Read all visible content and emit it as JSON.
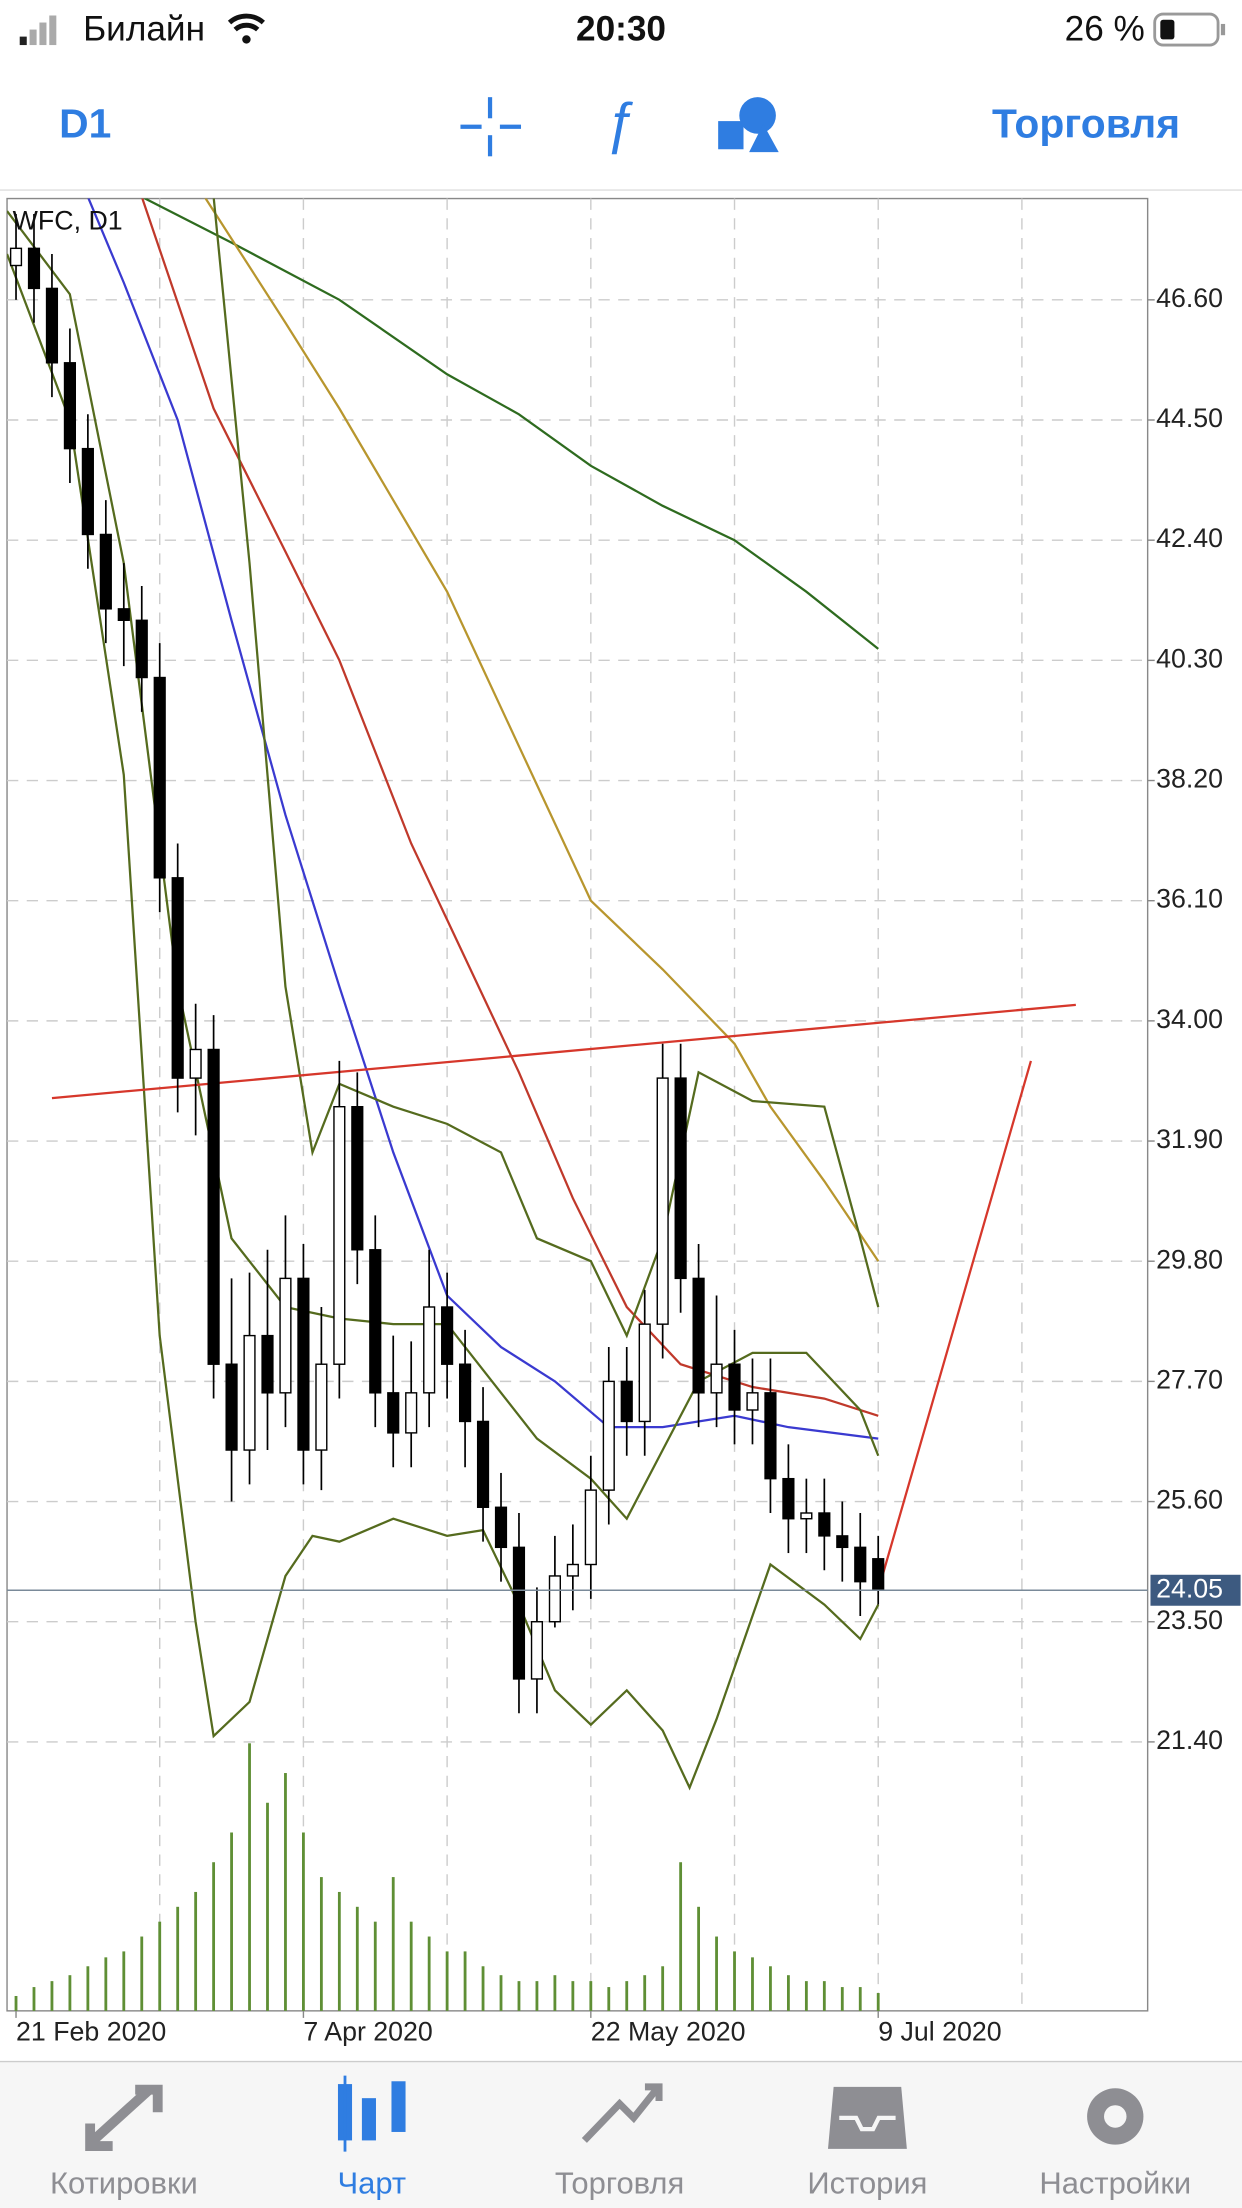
{
  "status_bar": {
    "carrier": "Билайн",
    "time": "20:30",
    "battery": "26 %"
  },
  "toolbar": {
    "timeframe": "D1",
    "trade": "Торговля"
  },
  "chart_data": {
    "type": "candlestick",
    "title": "WFC, D1",
    "x": [
      0,
      2,
      4,
      6,
      8,
      10,
      12,
      14,
      16,
      18,
      20,
      22,
      24,
      26,
      28,
      30,
      32,
      34,
      36,
      38,
      40,
      42,
      44,
      46,
      48,
      50,
      52,
      54,
      56,
      58,
      60,
      62,
      64,
      66,
      68,
      70,
      72,
      74,
      76,
      78,
      80,
      82,
      84,
      86,
      88,
      90,
      92,
      94,
      96
    ],
    "open": [
      47.2,
      47.5,
      46.8,
      45.5,
      44.0,
      42.5,
      41.2,
      41.0,
      40.0,
      36.5,
      33.0,
      33.5,
      28.0,
      26.5,
      28.5,
      27.5,
      29.5,
      26.5,
      28.0,
      32.5,
      30.0,
      27.5,
      26.8,
      27.5,
      29.0,
      28.0,
      27.0,
      25.5,
      24.8,
      22.5,
      23.5,
      24.3,
      24.5,
      25.8,
      27.7,
      27.0,
      28.7,
      33.0,
      29.5,
      27.5,
      28.0,
      27.2,
      27.5,
      26.0,
      25.3,
      25.4,
      25.0,
      24.8,
      24.6
    ],
    "high": [
      48.1,
      48.1,
      47.4,
      46.1,
      44.6,
      43.1,
      42.0,
      41.6,
      40.6,
      37.1,
      34.3,
      34.1,
      29.5,
      29.6,
      30.0,
      30.6,
      30.1,
      29.0,
      33.3,
      33.1,
      30.6,
      28.5,
      28.4,
      30.0,
      29.6,
      28.6,
      27.6,
      26.1,
      25.4,
      24.1,
      25.0,
      25.2,
      26.4,
      28.3,
      28.3,
      29.3,
      33.6,
      33.6,
      30.1,
      29.2,
      28.6,
      28.1,
      28.1,
      26.6,
      26.0,
      26.0,
      25.6,
      25.4,
      25.0
    ],
    "low": [
      46.6,
      46.2,
      44.9,
      43.4,
      41.9,
      40.6,
      40.2,
      39.4,
      35.9,
      32.4,
      32.0,
      27.4,
      25.6,
      25.9,
      26.5,
      26.9,
      25.9,
      25.8,
      27.4,
      29.4,
      26.9,
      26.2,
      26.2,
      26.9,
      27.4,
      26.2,
      24.9,
      24.2,
      21.9,
      21.9,
      23.4,
      23.7,
      23.9,
      25.2,
      26.4,
      26.4,
      28.1,
      28.9,
      26.9,
      26.9,
      26.6,
      26.6,
      25.4,
      24.7,
      24.7,
      24.4,
      24.2,
      23.6,
      23.8
    ],
    "close": [
      47.5,
      46.8,
      45.5,
      44.0,
      42.5,
      41.2,
      41.0,
      40.0,
      36.5,
      33.0,
      33.5,
      28.0,
      26.5,
      28.5,
      27.5,
      29.5,
      26.5,
      28.0,
      32.5,
      30.0,
      27.5,
      26.8,
      27.5,
      29.0,
      28.0,
      27.0,
      25.5,
      24.8,
      22.5,
      23.5,
      24.3,
      24.5,
      25.8,
      27.7,
      27.0,
      28.7,
      33.0,
      29.5,
      27.5,
      28.0,
      27.2,
      27.5,
      26.0,
      25.3,
      25.4,
      25.0,
      24.8,
      24.2,
      24.05
    ],
    "volume": [
      5,
      8,
      10,
      12,
      15,
      18,
      20,
      25,
      30,
      35,
      40,
      50,
      60,
      90,
      70,
      80,
      60,
      45,
      40,
      35,
      30,
      45,
      30,
      25,
      20,
      20,
      15,
      12,
      10,
      10,
      12,
      10,
      10,
      8,
      10,
      12,
      15,
      50,
      35,
      25,
      20,
      18,
      15,
      12,
      10,
      10,
      8,
      8,
      6
    ],
    "up_color": "#ffffff",
    "down_color": "#000000",
    "volume_color": "#5f8f35",
    "xlim": [
      -1,
      126
    ],
    "ylim": [
      16.7,
      48.37
    ],
    "xticks": [
      {
        "value": 0,
        "label": "21 Feb 2020"
      },
      {
        "value": 32,
        "label": "7 Apr 2020"
      },
      {
        "value": 64,
        "label": "22 May 2020"
      },
      {
        "value": 96,
        "label": "9 Jul 2020"
      }
    ],
    "xgrid": [
      16,
      32,
      48,
      64,
      80,
      96,
      112
    ],
    "yticks": [
      {
        "value": 46.6,
        "label": "46.60"
      },
      {
        "value": 44.5,
        "label": "44.50"
      },
      {
        "value": 42.4,
        "label": "42.40"
      },
      {
        "value": 40.3,
        "label": "40.30"
      },
      {
        "value": 38.2,
        "label": "38.20"
      },
      {
        "value": 36.1,
        "label": "36.10"
      },
      {
        "value": 34,
        "label": "34.00"
      },
      {
        "value": 31.9,
        "label": "31.90"
      },
      {
        "value": 29.8,
        "label": "29.80"
      },
      {
        "value": 27.7,
        "label": "27.70"
      },
      {
        "value": 25.6,
        "label": "25.60"
      },
      {
        "value": 23.5,
        "label": "23.50"
      },
      {
        "value": 21.4,
        "label": "21.40"
      }
    ],
    "grid": true,
    "last_price": 24.05,
    "series": [
      {
        "color": "#2e6b1f",
        "x": [
          14,
          24,
          36,
          48,
          56,
          64,
          72,
          80,
          88,
          96
        ],
        "values": [
          48.4,
          47.6,
          46.6,
          45.3,
          44.6,
          43.7,
          43.0,
          42.4,
          41.5,
          40.5
        ]
      },
      {
        "color": "#b8962e",
        "x": [
          21,
          30,
          36,
          48,
          56,
          64,
          72,
          80,
          84,
          90,
          96
        ],
        "values": [
          48.4,
          46.2,
          44.7,
          41.5,
          38.8,
          36.1,
          34.9,
          33.6,
          32.5,
          31.2,
          29.8
        ]
      },
      {
        "color": "#c0392b",
        "x": [
          14,
          22,
          30,
          36,
          44,
          50,
          56,
          62,
          68,
          74,
          82,
          90,
          96
        ],
        "values": [
          48.4,
          44.7,
          42.2,
          40.3,
          37.1,
          35.1,
          33.1,
          30.9,
          29.0,
          28.0,
          27.6,
          27.4,
          27.1
        ]
      },
      {
        "color": "#3a3ad0",
        "x": [
          8,
          12,
          18,
          24,
          30,
          36,
          42,
          48,
          54,
          60,
          66,
          72,
          80,
          86,
          96
        ],
        "values": [
          48.4,
          46.9,
          44.5,
          41.0,
          37.6,
          34.6,
          31.7,
          29.2,
          28.3,
          27.7,
          26.9,
          26.9,
          27.1,
          26.9,
          26.7
        ]
      },
      {
        "color": "#556b1e",
        "x": [
          22,
          26,
          30,
          33,
          36,
          42,
          48,
          54,
          58,
          64,
          68,
          72,
          76,
          82,
          90,
          94,
          96
        ],
        "values": [
          48.4,
          42.0,
          34.6,
          31.7,
          32.9,
          32.5,
          32.2,
          31.7,
          30.2,
          29.8,
          28.5,
          30.2,
          33.1,
          32.6,
          32.5,
          30.2,
          29.0
        ]
      },
      {
        "color": "#556b1e",
        "x": [
          -1,
          6,
          12,
          18,
          24,
          30,
          36,
          42,
          48,
          54,
          58,
          64,
          68,
          72,
          76,
          82,
          88,
          94,
          96
        ],
        "values": [
          48.15,
          46.7,
          42.0,
          34.6,
          30.2,
          29.0,
          28.8,
          28.7,
          28.7,
          27.5,
          26.7,
          26.0,
          25.3,
          26.5,
          27.7,
          28.2,
          28.2,
          27.2,
          26.4
        ]
      },
      {
        "color": "#556b1e",
        "x": [
          -1,
          6,
          12,
          16,
          20,
          22,
          26,
          30,
          33,
          36,
          42,
          48,
          52,
          56,
          60,
          64,
          68,
          72,
          75,
          78,
          84,
          90,
          94,
          96
        ],
        "values": [
          47.4,
          44.5,
          38.3,
          28.5,
          23.5,
          21.5,
          22.1,
          24.3,
          25.0,
          24.9,
          25.3,
          25.0,
          25.1,
          23.8,
          22.3,
          21.7,
          22.3,
          21.6,
          20.6,
          21.8,
          24.5,
          23.8,
          23.2,
          23.8
        ]
      },
      {
        "color": "#d6372b",
        "x": [
          4,
          118
        ],
        "values": [
          32.65,
          34.28
        ]
      },
      {
        "color": "#d6372b",
        "x": [
          96,
          113
        ],
        "values": [
          24.05,
          33.3
        ]
      }
    ]
  },
  "tab_bar": {
    "tabs": [
      "Котировки",
      "Чарт",
      "Торговля",
      "История",
      "Настройки"
    ],
    "active": 1
  }
}
